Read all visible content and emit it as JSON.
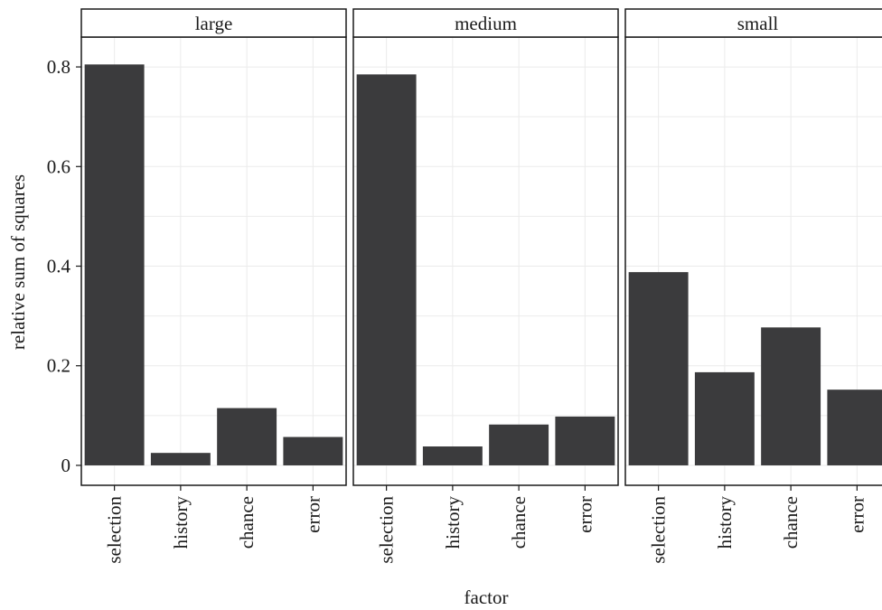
{
  "chart_data": {
    "type": "bar",
    "facets": [
      "large",
      "medium",
      "small"
    ],
    "categories": [
      "selection",
      "history",
      "chance",
      "error"
    ],
    "series": [
      {
        "facet": "large",
        "values": [
          0.805,
          0.025,
          0.115,
          0.057
        ]
      },
      {
        "facet": "medium",
        "values": [
          0.785,
          0.038,
          0.082,
          0.098
        ]
      },
      {
        "facet": "small",
        "values": [
          0.388,
          0.187,
          0.277,
          0.152
        ]
      }
    ],
    "xlabel": "factor",
    "ylabel": "relative sum of squares",
    "ylim": [
      -0.04,
      0.86
    ],
    "yticks": [
      0,
      0.2,
      0.4,
      0.6,
      0.8
    ],
    "ytick_labels": [
      "0",
      "0.2",
      "0.4",
      "0.6",
      "0.8"
    ],
    "grid": true,
    "colors": {
      "bar": "#3b3b3d",
      "grid": "#ebebeb",
      "frame": "#1a1a1a",
      "strip_bg": "#ffffff"
    }
  }
}
